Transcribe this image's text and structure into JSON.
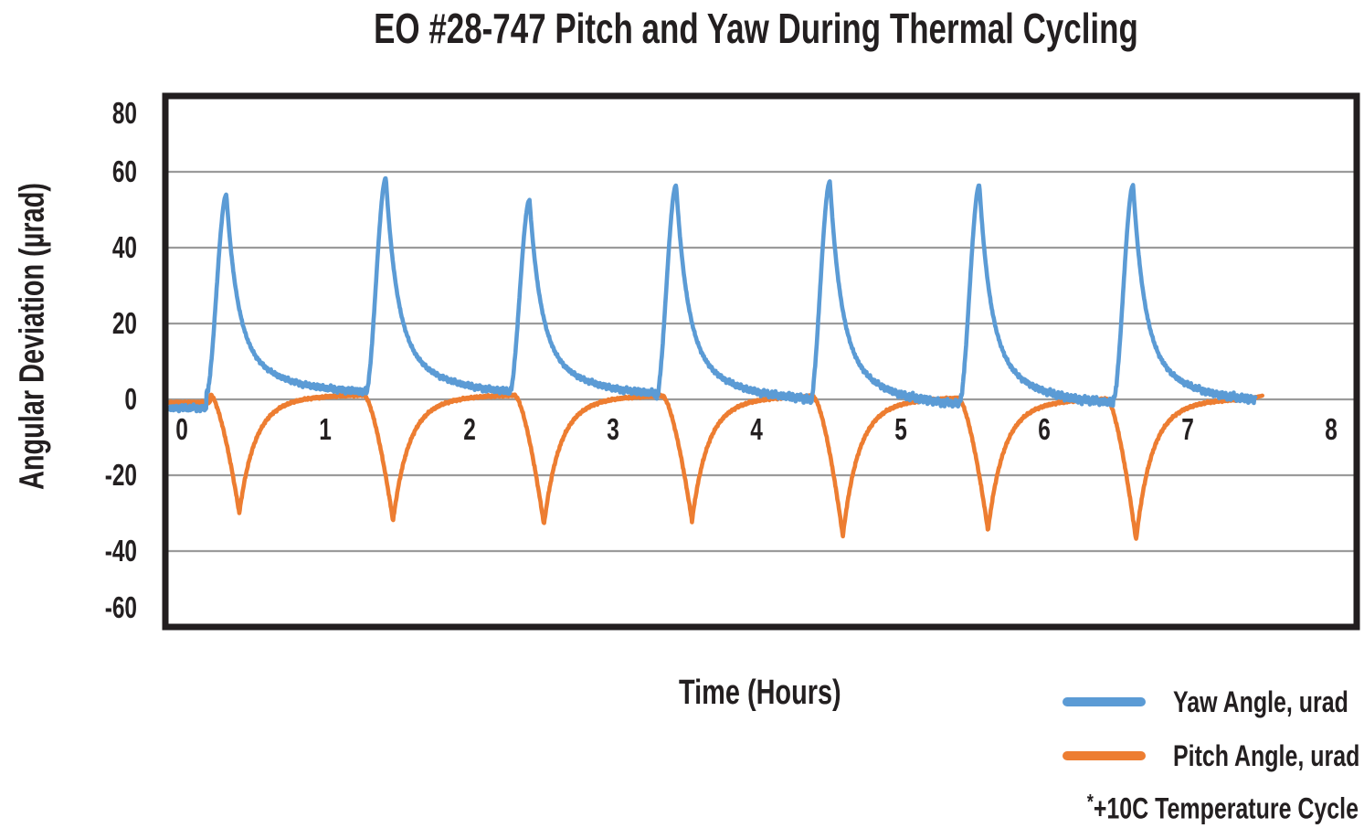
{
  "chart_data": {
    "type": "line",
    "title": "EO #28-747 Pitch and Yaw During Thermal Cycling",
    "xlabel": "Time (Hours)",
    "ylabel": "Angular Deviation (µrad)",
    "xlim": [
      -0.09,
      8.18
    ],
    "ylim": [
      -60,
      80
    ],
    "x_ticks": [
      0,
      1,
      2,
      3,
      4,
      5,
      6,
      7,
      8
    ],
    "y_ticks": [
      80,
      60,
      40,
      20,
      0,
      -20,
      -40,
      -60
    ],
    "grid": "horizontal-only",
    "legend_position": "bottom-right",
    "note_star": "*",
    "note_text": "+10C Temperature Cycle",
    "series": [
      {
        "name": "Yaw Angle, urad",
        "color": "#5B9BD5",
        "shape": "spike-up-exponential-decay",
        "peaks": [
          {
            "t": 0.31,
            "value": 54
          },
          {
            "t": 1.42,
            "value": 58
          },
          {
            "t": 2.42,
            "value": 52
          },
          {
            "t": 3.44,
            "value": 56
          },
          {
            "t": 4.51,
            "value": 57
          },
          {
            "t": 5.55,
            "value": 56
          },
          {
            "t": 6.62,
            "value": 56
          }
        ],
        "baseline_levels": [
          -2.3,
          1.5,
          1.2,
          0.8,
          -0.5,
          -2.0,
          -1.6,
          -1.0
        ],
        "rise_duration": 0.14,
        "decay_fast": 0.075,
        "decay_slow": 0.3,
        "decay_fast_frac": 0.72,
        "noise_amp": 1.15,
        "t_start": -0.09,
        "t_end": 7.47
      },
      {
        "name": "Pitch Angle, urad",
        "color": "#ED7D31",
        "shape": "dip-down-exponential-recovery",
        "dips": [
          {
            "t": 0.4,
            "value": -30
          },
          {
            "t": 1.47,
            "value": -32
          },
          {
            "t": 2.52,
            "value": -33
          },
          {
            "t": 3.55,
            "value": -32
          },
          {
            "t": 4.6,
            "value": -36
          },
          {
            "t": 5.61,
            "value": -34.5
          },
          {
            "t": 6.64,
            "value": -37
          }
        ],
        "plateau_levels": [
          -0.8,
          1.3,
          1.3,
          1.2,
          1.0,
          0.6,
          0.3,
          0.4
        ],
        "drop_duration": 0.2,
        "recover_fast": 0.1,
        "recover_slow": 0.24,
        "recover_fast_frac": 0.78,
        "noise_amp": 0.32,
        "end_value": 1.0,
        "t_start": -0.09,
        "t_end": 7.52
      }
    ]
  }
}
